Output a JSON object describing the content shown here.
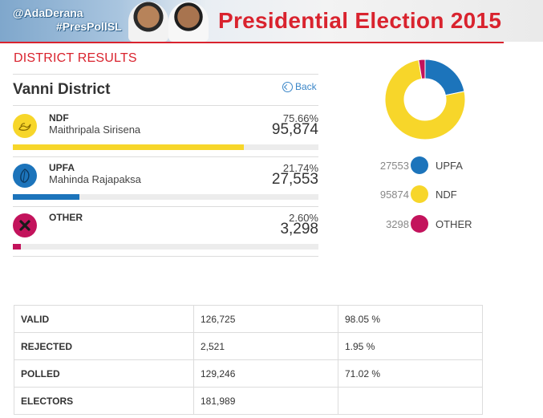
{
  "banner": {
    "handle_1": "@AdaDerana",
    "handle_2": "#PresPollSL",
    "headline": "Presidential Election 2015"
  },
  "section_title": "DISTRICT RESULTS",
  "district": {
    "name": "Vanni District",
    "back_label": "Back"
  },
  "parties": [
    {
      "code": "NDF",
      "candidate": "Maithripala Sirisena",
      "percent": "75.66%",
      "votes": "95,874",
      "share": 75.66,
      "color": "#f7d62a",
      "icon": "swan-symbol-icon"
    },
    {
      "code": "UPFA",
      "candidate": "Mahinda Rajapaksa",
      "percent": "21.74%",
      "votes": "27,553",
      "share": 21.74,
      "color": "#1c74bb",
      "icon": "betel-leaf-symbol-icon"
    },
    {
      "code": "OTHER",
      "candidate": "",
      "percent": "2.60%",
      "votes": "3,298",
      "share": 2.6,
      "color": "#c3135c",
      "icon": "cross-symbol-icon"
    }
  ],
  "chart_data": {
    "type": "pie",
    "categories": [
      "UPFA",
      "NDF",
      "OTHER"
    ],
    "values": [
      27553,
      95874,
      3298
    ],
    "colors": [
      "#1c74bb",
      "#f7d62a",
      "#c3135c"
    ],
    "title": "",
    "legend_position": "bottom"
  },
  "legend": [
    {
      "value": "27553",
      "label": "UPFA",
      "color": "#1c74bb"
    },
    {
      "value": "95874",
      "label": "NDF",
      "color": "#f7d62a"
    },
    {
      "value": "3298",
      "label": "OTHER",
      "color": "#c3135c"
    }
  ],
  "summary": [
    {
      "label": "VALID",
      "count": "126,725",
      "percent": "98.05 %"
    },
    {
      "label": "REJECTED",
      "count": "2,521",
      "percent": "1.95 %"
    },
    {
      "label": "POLLED",
      "count": "129,246",
      "percent": "71.02 %"
    },
    {
      "label": "ELECTORS",
      "count": "181,989",
      "percent": ""
    }
  ]
}
